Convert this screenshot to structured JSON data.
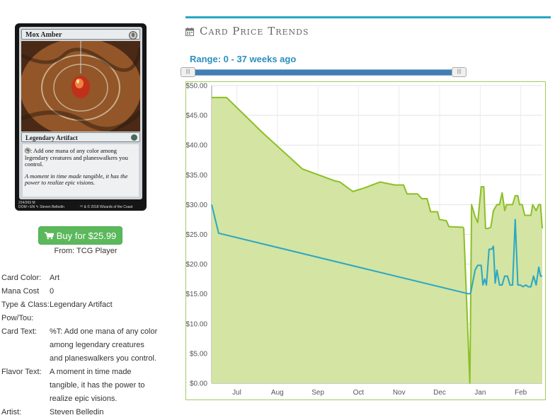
{
  "card": {
    "name": "Mox Amber",
    "mana_symbol": "0",
    "type_line": "Legendary Artifact",
    "rules_text": ": Add one mana of any color among legendary creatures and planeswalkers you control.",
    "flavor_text": "A moment in time made tangible, it has the power to realize epic visions.",
    "collector_line": "224/269 M",
    "set_line": "DOM • EN ✎ Steven Belledin",
    "copyright": "™ & © 2018 Wizards of the Coast"
  },
  "buy": {
    "label": "Buy for $25.99",
    "from": "From: TCG Player",
    "icon": "shopping-cart-icon"
  },
  "details": [
    {
      "label": "Card Color:",
      "value": "Art"
    },
    {
      "label": "Mana Cost",
      "value": "0"
    },
    {
      "label": "Type & Class:",
      "value": "Legendary Artifact"
    },
    {
      "label": "Pow/Tou:",
      "value": ""
    },
    {
      "label": "Card Text:",
      "value": "%T: Add one mana of any color among legendary creatures and planeswalkers you control."
    },
    {
      "label": "Flavor Text:",
      "value": "A moment in time made tangible, it has the power to realize epic visions."
    },
    {
      "label": "Artist:",
      "value": "Steven Belledin"
    }
  ],
  "panel": {
    "title": "Card Price Trends",
    "icon": "calendar-icon",
    "range_label": "Range: 0 - 37 weeks ago",
    "accent": "#25a7c1"
  },
  "chart_data": {
    "type": "line",
    "x_tick_labels": [
      "Jul",
      "Aug",
      "Sep",
      "Oct",
      "Nov",
      "Dec",
      "Jan",
      "Feb"
    ],
    "y_tick_labels": [
      "$0.00",
      "$5.00",
      "$10.00",
      "$15.00",
      "$20.00",
      "$25.00",
      "$30.00",
      "$35.00",
      "$40.00",
      "$45.00",
      "$50.00"
    ],
    "ylim": [
      0,
      50
    ],
    "x_range_weeks": [
      0,
      37.9
    ],
    "grid": true,
    "series": [
      {
        "color": "#8cbf26",
        "fill": "#d3e4a3",
        "points": [
          [
            0,
            48
          ],
          [
            0.8,
            48
          ],
          [
            1.7,
            48
          ],
          [
            5.9,
            42
          ],
          [
            10.4,
            36
          ],
          [
            14.1,
            34
          ],
          [
            14.7,
            33.8
          ],
          [
            16.2,
            32.2
          ],
          [
            17.5,
            32.8
          ],
          [
            19.3,
            33.8
          ],
          [
            21.0,
            33.3
          ],
          [
            22.0,
            33.3
          ],
          [
            22.4,
            31.8
          ],
          [
            23.6,
            31.8
          ],
          [
            24.1,
            31.0
          ],
          [
            24.7,
            31.0
          ],
          [
            25.1,
            28.8
          ],
          [
            25.9,
            28.8
          ],
          [
            26.1,
            27.5
          ],
          [
            26.9,
            27.3
          ],
          [
            27.2,
            26.3
          ],
          [
            28.8,
            26.2
          ],
          [
            28.9,
            26.0
          ],
          [
            29.6,
            0
          ],
          [
            29.8,
            30
          ],
          [
            30.2,
            28
          ],
          [
            30.5,
            27
          ],
          [
            30.9,
            33
          ],
          [
            31.2,
            33
          ],
          [
            31.4,
            26
          ],
          [
            31.7,
            26
          ],
          [
            32.0,
            26.2
          ],
          [
            32.3,
            29
          ],
          [
            32.7,
            30
          ],
          [
            33.0,
            30
          ],
          [
            33.3,
            32
          ],
          [
            33.6,
            29
          ],
          [
            33.8,
            30
          ],
          [
            34.2,
            30
          ],
          [
            34.5,
            30
          ],
          [
            34.8,
            31.5
          ],
          [
            35.1,
            31.5
          ],
          [
            35.3,
            30
          ],
          [
            35.6,
            30
          ],
          [
            35.9,
            28.2
          ],
          [
            36.6,
            28.2
          ],
          [
            36.8,
            30
          ],
          [
            37.2,
            29
          ],
          [
            37.5,
            30
          ],
          [
            37.7,
            30
          ],
          [
            37.9,
            26
          ]
        ]
      },
      {
        "color": "#2ba7c2",
        "points": [
          [
            0,
            30
          ],
          [
            0.8,
            25.2
          ],
          [
            29.5,
            15
          ],
          [
            29.7,
            15.2
          ],
          [
            30.2,
            19
          ],
          [
            30.5,
            19.8
          ],
          [
            30.9,
            19.8
          ],
          [
            31.1,
            16.5
          ],
          [
            31.3,
            17.5
          ],
          [
            31.5,
            16.5
          ],
          [
            31.8,
            22.5
          ],
          [
            32.1,
            22.5
          ],
          [
            32.3,
            23
          ],
          [
            32.5,
            16.8
          ],
          [
            32.7,
            19
          ],
          [
            33.0,
            16.5
          ],
          [
            33.3,
            16.5
          ],
          [
            33.6,
            18
          ],
          [
            33.9,
            18
          ],
          [
            34.2,
            16.5
          ],
          [
            34.5,
            16.5
          ],
          [
            34.8,
            27.5
          ],
          [
            35.1,
            16.5
          ],
          [
            35.4,
            16.5
          ],
          [
            35.7,
            16.2
          ],
          [
            36.0,
            16.5
          ],
          [
            36.3,
            16.2
          ],
          [
            36.6,
            16.2
          ],
          [
            36.9,
            18
          ],
          [
            37.2,
            16.5
          ],
          [
            37.5,
            19.5
          ],
          [
            37.7,
            18
          ],
          [
            37.9,
            18
          ]
        ]
      }
    ]
  }
}
